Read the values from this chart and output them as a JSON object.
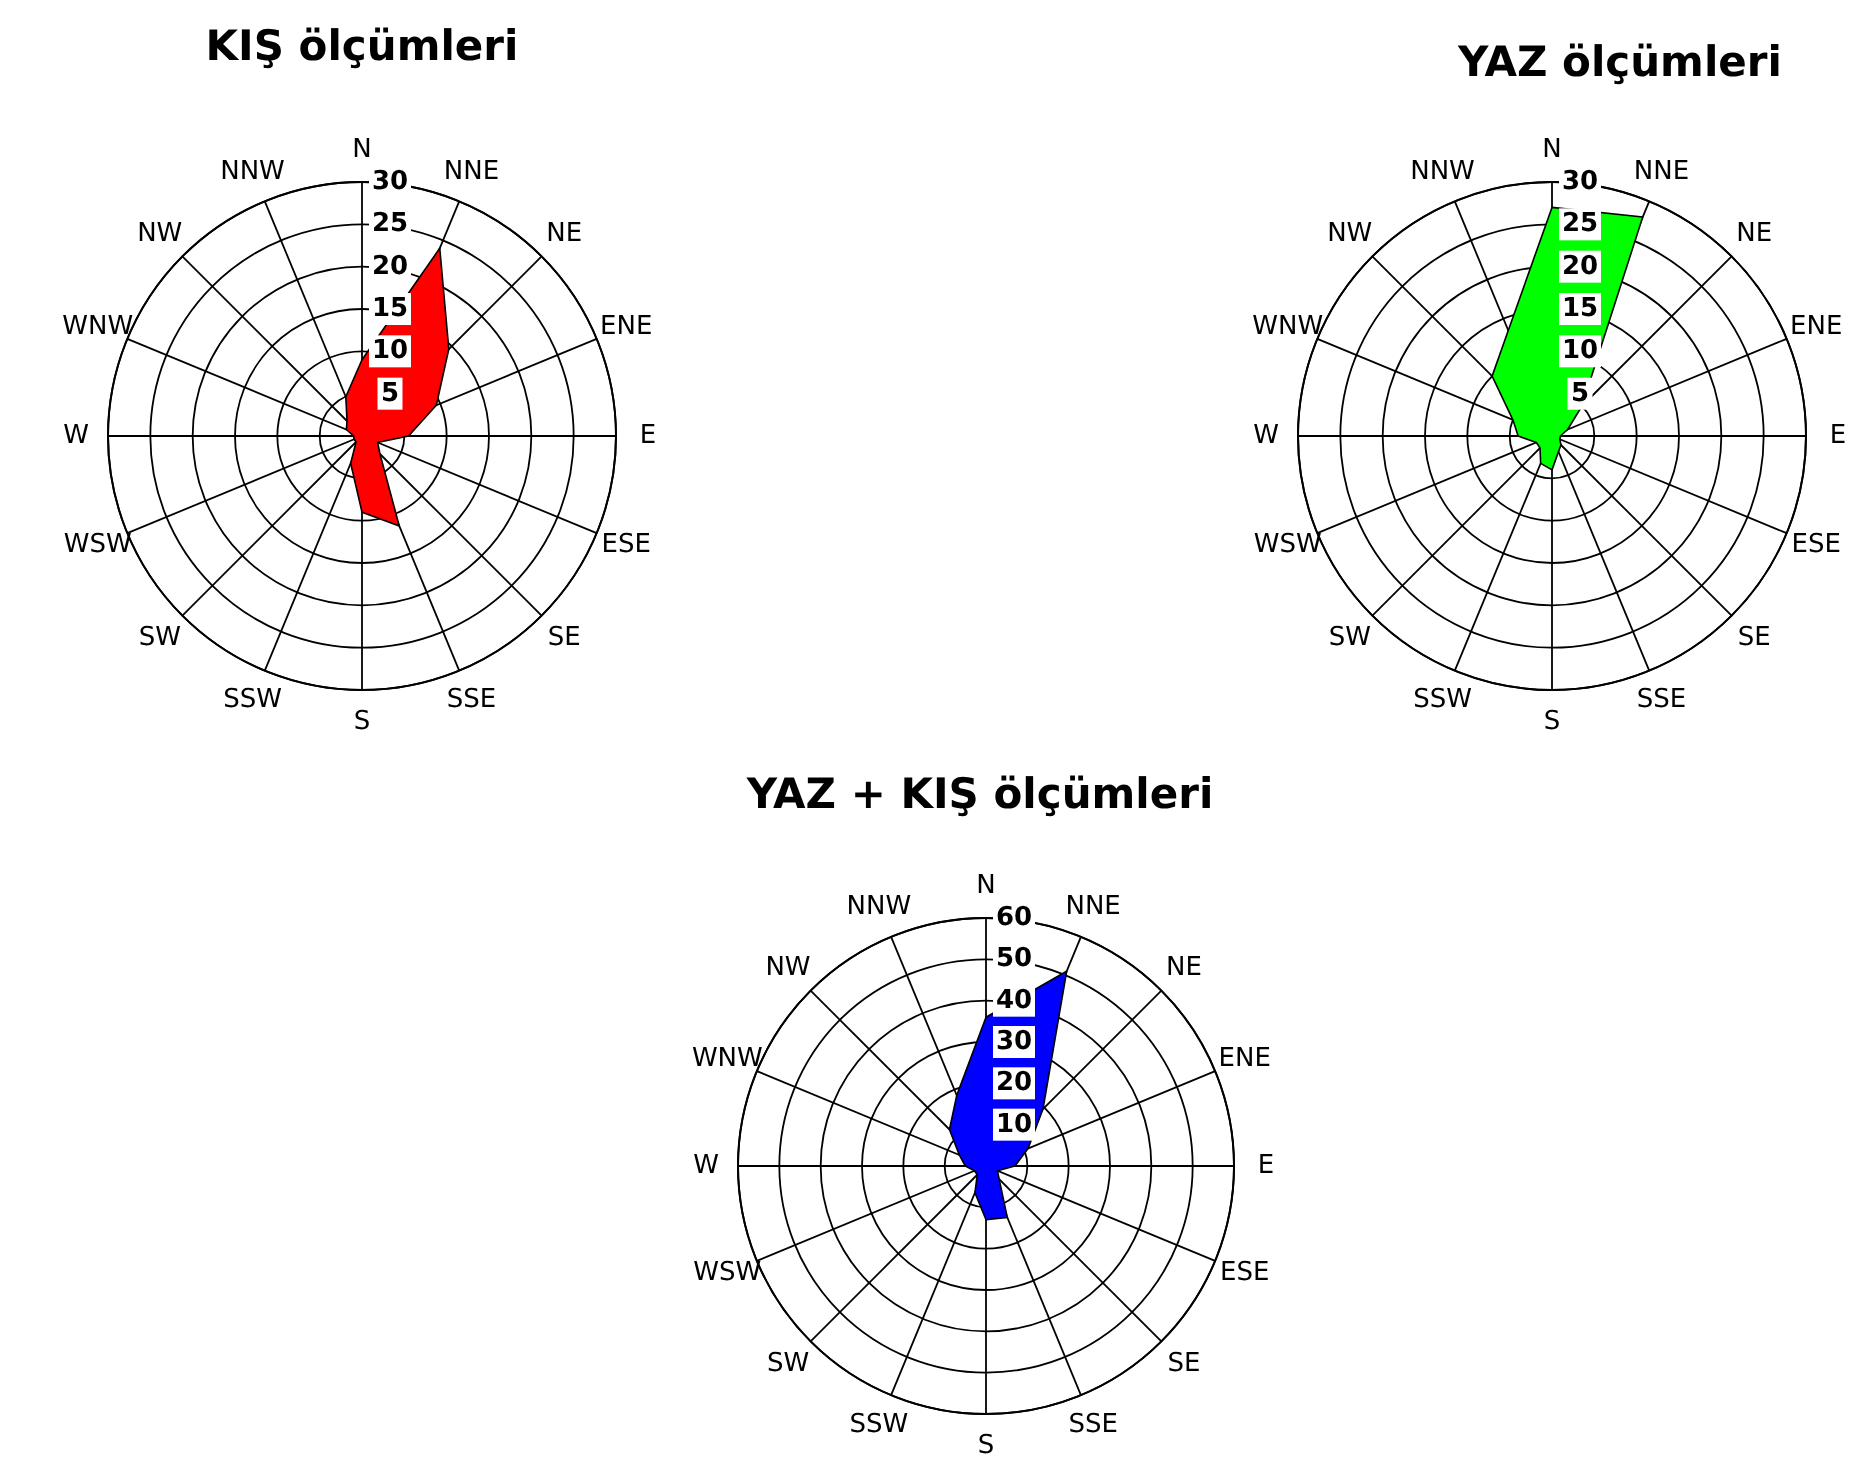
{
  "chart_data": [
    {
      "type": "radar",
      "title": "KIŞ ölçümleri",
      "categories": [
        "N",
        "NNE",
        "NE",
        "ENE",
        "E",
        "ESE",
        "SE",
        "SSE",
        "S",
        "SSW",
        "SW",
        "WSW",
        "W",
        "WNW",
        "NW",
        "NNW"
      ],
      "series": [
        {
          "color": "#ff0000",
          "values": [
            9,
            24,
            14.5,
            9.5,
            5.5,
            2,
            3,
            11.5,
            9,
            3.5,
            1,
            1,
            1,
            2,
            2.5,
            5
          ]
        }
      ],
      "ylim": [
        0,
        30
      ],
      "yticks": [
        5,
        10,
        15,
        20,
        25,
        30
      ],
      "grid": true
    },
    {
      "type": "radar",
      "title": "YAZ ölçümleri",
      "categories": [
        "N",
        "NNE",
        "NE",
        "ENE",
        "E",
        "ESE",
        "SE",
        "SSE",
        "S",
        "SSW",
        "SW",
        "WSW",
        "W",
        "WNW",
        "NW",
        "NNW"
      ],
      "series": [
        {
          "color": "#00ff00",
          "values": [
            27,
            28,
            5,
            2,
            1,
            1,
            1.5,
            2,
            4,
            3.5,
            2,
            2,
            4,
            5,
            10,
            13.5
          ]
        }
      ],
      "ylim": [
        0,
        30
      ],
      "yticks": [
        5,
        10,
        15,
        20,
        25,
        30
      ],
      "grid": true
    },
    {
      "type": "radar",
      "title": "YAZ + KIŞ ölçümleri",
      "categories": [
        "N",
        "NNE",
        "NE",
        "ENE",
        "E",
        "ESE",
        "SE",
        "SSE",
        "S",
        "SSW",
        "SW",
        "WSW",
        "W",
        "WNW",
        "NW",
        "NNW"
      ],
      "series": [
        {
          "color": "#0000ff",
          "values": [
            36,
            51,
            19.5,
            11,
            7,
            3,
            4.5,
            13.5,
            13,
            7,
            3,
            3,
            5,
            7,
            12.5,
            18.5
          ]
        }
      ],
      "ylim": [
        0,
        60
      ],
      "yticks": [
        10,
        20,
        30,
        40,
        50,
        60
      ],
      "grid": true
    }
  ]
}
